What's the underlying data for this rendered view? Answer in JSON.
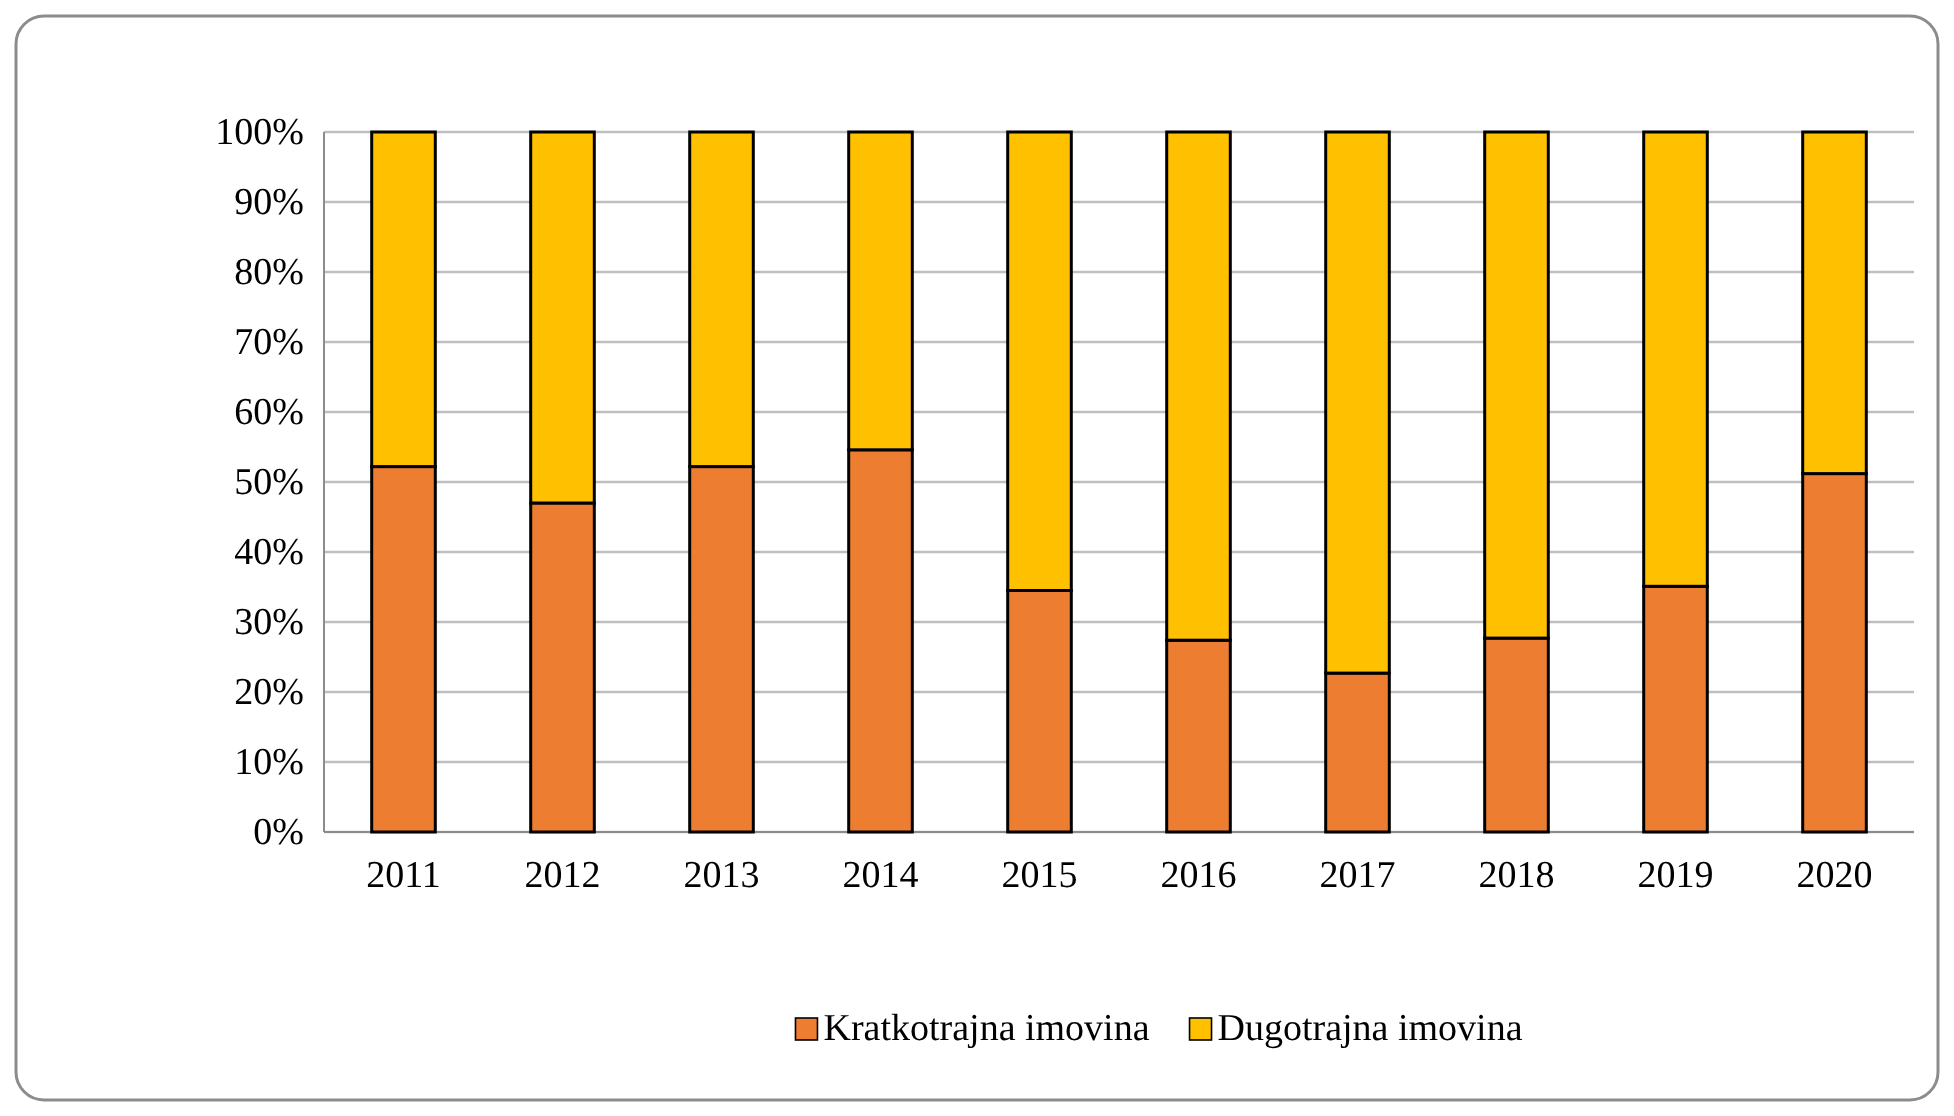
{
  "chart_data": {
    "type": "bar",
    "stacked": true,
    "categories": [
      "2011",
      "2012",
      "2013",
      "2014",
      "2015",
      "2016",
      "2017",
      "2018",
      "2019",
      "2020"
    ],
    "series": [
      {
        "name": "Kratkotrajna imovina",
        "color": "#ed7d31",
        "values": [
          52.2,
          47.0,
          52.2,
          54.6,
          34.5,
          27.4,
          22.7,
          27.7,
          35.1,
          51.2
        ]
      },
      {
        "name": "Dugotrajna imovina",
        "color": "#ffc000",
        "values": [
          47.8,
          53.0,
          47.8,
          45.4,
          65.5,
          72.6,
          77.3,
          72.3,
          64.9,
          48.8
        ]
      }
    ],
    "ylim": [
      0,
      100
    ],
    "yticks": [
      {
        "value": 0,
        "label": "0%"
      },
      {
        "value": 10,
        "label": "10%"
      },
      {
        "value": 20,
        "label": "20%"
      },
      {
        "value": 30,
        "label": "30%"
      },
      {
        "value": 40,
        "label": "40%"
      },
      {
        "value": 50,
        "label": "50%"
      },
      {
        "value": 60,
        "label": "60%"
      },
      {
        "value": 70,
        "label": "70%"
      },
      {
        "value": 80,
        "label": "80%"
      },
      {
        "value": 90,
        "label": "90%"
      },
      {
        "value": 100,
        "label": "100%"
      }
    ],
    "grid": "y",
    "legend": "bottom"
  }
}
